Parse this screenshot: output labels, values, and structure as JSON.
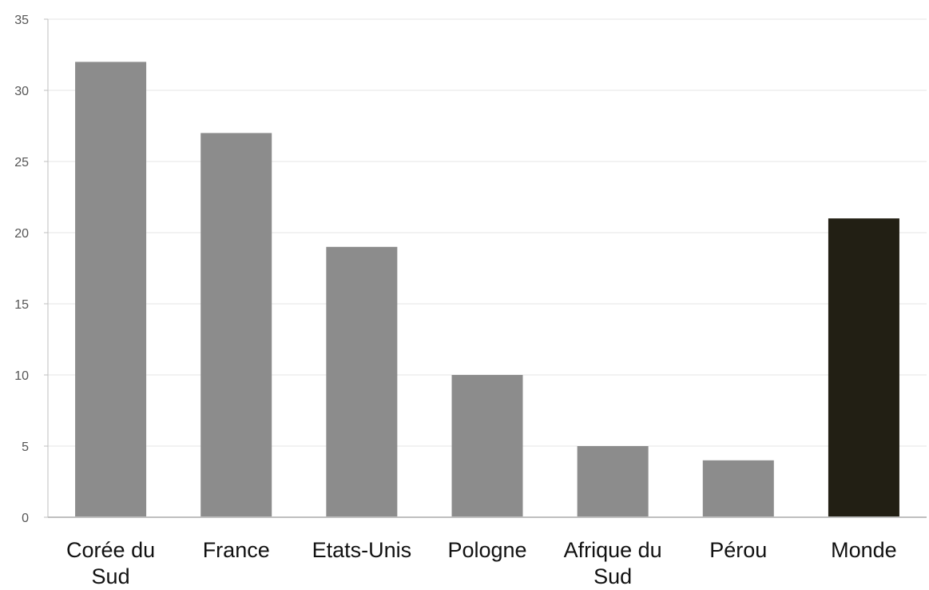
{
  "chart_data": {
    "type": "bar",
    "title": "",
    "xlabel": "",
    "ylabel": "",
    "categories": [
      [
        "Corée du",
        "Sud"
      ],
      [
        "France"
      ],
      [
        "Etats-Unis"
      ],
      [
        "Pologne"
      ],
      [
        "Afrique du",
        "Sud"
      ],
      [
        "Pérou"
      ],
      [
        "Monde"
      ]
    ],
    "values": [
      32,
      27,
      19,
      10,
      5,
      4,
      21
    ],
    "bar_colors": [
      "#8c8c8c",
      "#8c8c8c",
      "#8c8c8c",
      "#8c8c8c",
      "#8c8c8c",
      "#8c8c8c",
      "#221f14"
    ],
    "ylim": [
      0,
      35
    ],
    "yticks": [
      0,
      5,
      10,
      15,
      20,
      25,
      30,
      35
    ],
    "grid": true,
    "legend": "none"
  }
}
